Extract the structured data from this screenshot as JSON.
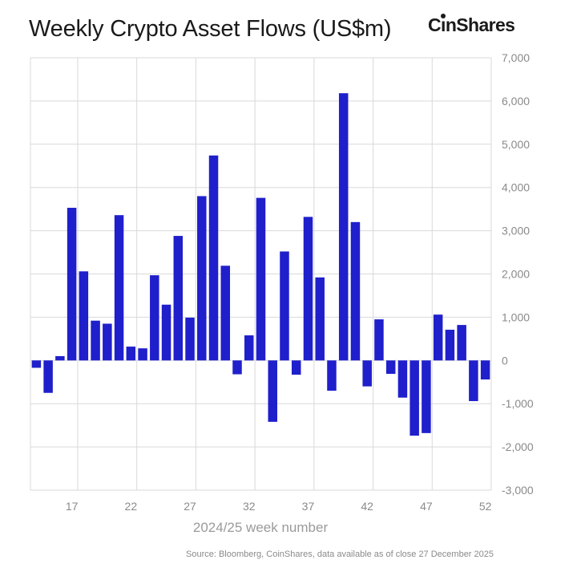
{
  "header": {
    "title": "Weekly Crypto Asset Flows (US$m)",
    "logo_text": "CoinShares"
  },
  "colors": {
    "bar": "#1f1fcc",
    "grid": "#d9d9d9",
    "axis_text": "#8a8a8a"
  },
  "footer": {
    "source": "Source: Bloomberg, CoinShares, data available as of close 27 December 2025"
  },
  "chart_data": {
    "type": "bar",
    "title": "Weekly Crypto Asset Flows (US$m)",
    "xlabel": "2024/25 week number",
    "ylabel": "",
    "y_axis_side": "right",
    "ylim": [
      -3000,
      7000
    ],
    "y_ticks": [
      7000,
      6000,
      5000,
      4000,
      3000,
      2000,
      1000,
      0,
      -1000,
      -2000,
      -3000
    ],
    "y_tick_labels": [
      "7,000",
      "6,000",
      "5,000",
      "4,000",
      "3,000",
      "2,000",
      "1,000",
      "0",
      "-1,000",
      "-2,000",
      "-3,000"
    ],
    "x_ticks": [
      17,
      22,
      27,
      32,
      37,
      42,
      47,
      52
    ],
    "x_tick_labels": [
      "17",
      "22",
      "27",
      "32",
      "37",
      "42",
      "47",
      "52"
    ],
    "x": [
      14,
      15,
      16,
      17,
      18,
      19,
      20,
      21,
      22,
      23,
      24,
      25,
      26,
      27,
      28,
      29,
      30,
      31,
      32,
      33,
      34,
      35,
      36,
      37,
      38,
      39,
      40,
      41,
      42,
      43,
      44,
      45,
      46,
      47,
      48,
      49,
      50,
      51,
      52
    ],
    "values": [
      -170,
      -750,
      100,
      3530,
      2060,
      920,
      850,
      3360,
      320,
      280,
      1970,
      1290,
      2880,
      990,
      3800,
      4740,
      2190,
      -320,
      580,
      3760,
      -1420,
      2520,
      -330,
      3320,
      1920,
      -700,
      6180,
      3200,
      -600,
      950,
      -310,
      -860,
      -1740,
      -1680,
      1060,
      710,
      820,
      -940,
      -440
    ],
    "grid": true
  }
}
